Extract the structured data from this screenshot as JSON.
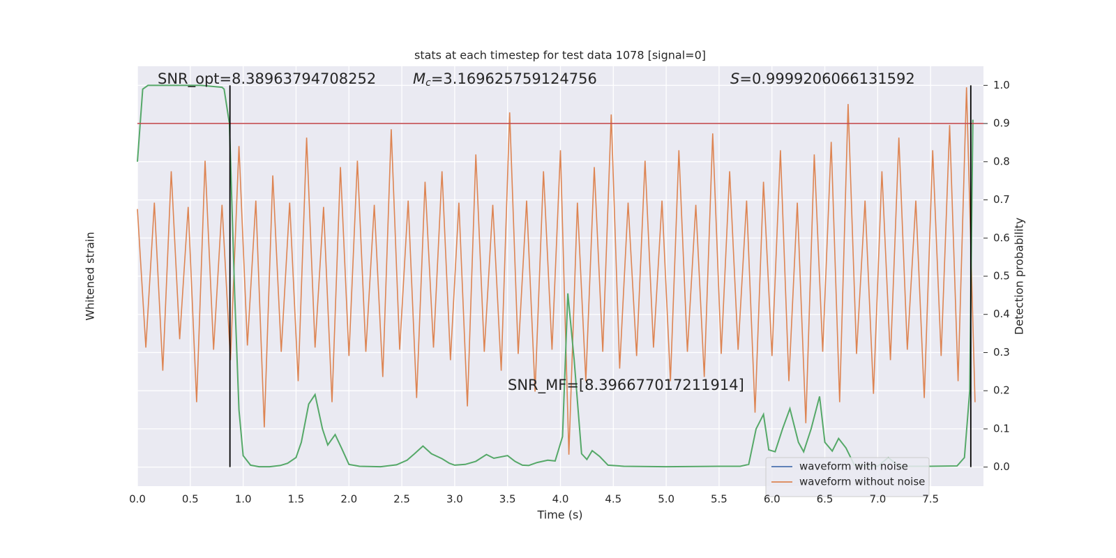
{
  "chart_data": {
    "type": "line",
    "title": "stats at each timestep for test data 1078 [signal=0]",
    "xlabel": "Time (s)",
    "ylabel": "Whitened strain",
    "y2label": "Detection probability",
    "annotations": {
      "snr_opt": "SNR_opt=8.38963794708252",
      "chirp_mass": {
        "symbol": "M",
        "subscript": "c",
        "text": "=3.169625759124756"
      },
      "spin": {
        "symbol": "S",
        "text": "=0.9999206066131592"
      },
      "snr_mf": "SNR_MF=[8.396677017211914]"
    },
    "xlim": [
      0,
      8.0
    ],
    "ylim": [
      -1,
      1
    ],
    "y2lim": [
      -0.05,
      1.05
    ],
    "xticks": [
      {
        "value": 0,
        "label": "0.0"
      },
      0.5,
      {
        "value": 1,
        "label": "1.0"
      },
      1.5,
      {
        "value": 2,
        "label": "2.0"
      },
      2.5,
      {
        "value": 3,
        "label": "3.0"
      },
      3.5,
      {
        "value": 4,
        "label": "4.0"
      },
      4.5,
      {
        "value": 5,
        "label": "5.0"
      },
      5.5,
      {
        "value": 6,
        "label": "6.0"
      },
      6.5,
      {
        "value": 7,
        "label": "7.0"
      },
      7.5
    ],
    "y2ticks": [
      {
        "value": 0,
        "label": "0.0"
      },
      0.1,
      0.2,
      0.3,
      0.4,
      0.5,
      0.6,
      0.7,
      0.8,
      0.9,
      {
        "value": 1,
        "label": "1.0"
      }
    ],
    "grid": true,
    "legend": "lower right",
    "threshold": {
      "value": 0.9,
      "color": "#c44e52"
    },
    "vlines": {
      "x": [
        0.875,
        7.88
      ],
      "ymin": 0,
      "ymax": 1,
      "color": "#000000"
    },
    "series": [
      {
        "name": "waveform with noise",
        "color": "#4c72b0"
      },
      {
        "name": "waveform without noise",
        "color": "#dd8452",
        "x": [
          0,
          0.08,
          0.16,
          0.24,
          0.32,
          0.4,
          0.48,
          0.56,
          0.64,
          0.72,
          0.8,
          0.88,
          0.96,
          1.04,
          1.12,
          1.2,
          1.28,
          1.36,
          1.44,
          1.52,
          1.6,
          1.68,
          1.76,
          1.84,
          1.92,
          2,
          2.08,
          2.16,
          2.24,
          2.32,
          2.4,
          2.48,
          2.56,
          2.64,
          2.72,
          2.8,
          2.88,
          2.96,
          3.04,
          3.12,
          3.2,
          3.28,
          3.36,
          3.44,
          3.52,
          3.6,
          3.68,
          3.76,
          3.84,
          3.92,
          4,
          4.08,
          4.16,
          4.24,
          4.32,
          4.4,
          4.48,
          4.56,
          4.64,
          4.72,
          4.8,
          4.88,
          4.96,
          5.04,
          5.12,
          5.2,
          5.28,
          5.36,
          5.44,
          5.52,
          5.6,
          5.68,
          5.76,
          5.84,
          5.92,
          6,
          6.08,
          6.16,
          6.24,
          6.32,
          6.4,
          6.48,
          6.56,
          6.64,
          6.72,
          6.8,
          6.88,
          6.96,
          7.04,
          7.12,
          7.2,
          7.28,
          7.36,
          7.44,
          7.52,
          7.6,
          7.68,
          7.76,
          7.84,
          7.92
        ],
        "values": [
          0.32,
          -0.34,
          0.35,
          -0.45,
          0.5,
          -0.3,
          0.33,
          -0.6,
          0.55,
          -0.35,
          0.34,
          -0.4,
          0.62,
          -0.33,
          0.36,
          -0.72,
          0.48,
          -0.36,
          0.35,
          -0.5,
          0.66,
          -0.34,
          0.33,
          -0.6,
          0.52,
          -0.38,
          0.55,
          -0.36,
          0.34,
          -0.48,
          0.7,
          -0.35,
          0.36,
          -0.58,
          0.45,
          -0.34,
          0.5,
          -0.4,
          0.35,
          -0.62,
          0.58,
          -0.36,
          0.34,
          -0.45,
          0.78,
          -0.37,
          0.36,
          -0.55,
          0.5,
          -0.35,
          0.6,
          -0.85,
          0.35,
          -0.5,
          0.52,
          -0.36,
          0.77,
          -0.44,
          0.35,
          -0.38,
          0.55,
          -0.34,
          0.36,
          -0.5,
          0.6,
          -0.36,
          0.34,
          -0.48,
          0.68,
          -0.37,
          0.5,
          -0.35,
          0.36,
          -0.65,
          0.45,
          -0.38,
          0.6,
          -0.5,
          0.35,
          -0.7,
          0.58,
          -0.36,
          0.64,
          -0.6,
          0.82,
          -0.37,
          0.36,
          -0.56,
          0.5,
          -0.4,
          0.66,
          -0.35,
          0.36,
          -0.58,
          0.6,
          -0.38,
          0.72,
          -0.5,
          0.9,
          -0.6
        ]
      },
      {
        "color": "#55a868",
        "axis": "y2",
        "x": [
          0,
          0.05,
          0.1,
          0.2,
          0.4,
          0.6,
          0.8,
          0.82,
          0.87,
          0.92,
          0.96,
          1.0,
          1.07,
          1.15,
          1.25,
          1.35,
          1.42,
          1.5,
          1.55,
          1.62,
          1.68,
          1.75,
          1.8,
          1.87,
          1.93,
          2.0,
          2.1,
          2.3,
          2.45,
          2.55,
          2.62,
          2.7,
          2.78,
          2.88,
          2.95,
          3.0,
          3.1,
          3.2,
          3.3,
          3.37,
          3.5,
          3.57,
          3.64,
          3.7,
          3.78,
          3.88,
          3.95,
          4.02,
          4.07,
          4.13,
          4.2,
          4.25,
          4.3,
          4.37,
          4.45,
          4.6,
          5.0,
          5.5,
          5.7,
          5.78,
          5.85,
          5.92,
          5.97,
          6.03,
          6.1,
          6.17,
          6.25,
          6.3,
          6.37,
          6.45,
          6.5,
          6.57,
          6.63,
          6.7,
          6.78,
          7.0,
          7.1,
          7.2,
          7.5,
          7.75,
          7.82,
          7.87,
          7.9
        ],
        "values": [
          0.8,
          0.99,
          1.0,
          1.0,
          1.0,
          1.0,
          0.995,
          0.99,
          0.9,
          0.45,
          0.15,
          0.03,
          0.005,
          0.001,
          0.001,
          0.004,
          0.01,
          0.025,
          0.065,
          0.165,
          0.19,
          0.1,
          0.058,
          0.085,
          0.05,
          0.007,
          0.002,
          0.001,
          0.006,
          0.018,
          0.035,
          0.055,
          0.035,
          0.022,
          0.01,
          0.005,
          0.007,
          0.015,
          0.033,
          0.023,
          0.03,
          0.015,
          0.005,
          0.004,
          0.012,
          0.018,
          0.016,
          0.08,
          0.455,
          0.28,
          0.035,
          0.02,
          0.043,
          0.028,
          0.005,
          0.002,
          0.001,
          0.002,
          0.002,
          0.007,
          0.1,
          0.138,
          0.045,
          0.04,
          0.1,
          0.153,
          0.065,
          0.04,
          0.1,
          0.185,
          0.065,
          0.042,
          0.075,
          0.05,
          0.005,
          0.002,
          0.025,
          0.002,
          0.002,
          0.003,
          0.025,
          0.2,
          0.91
        ]
      }
    ]
  }
}
